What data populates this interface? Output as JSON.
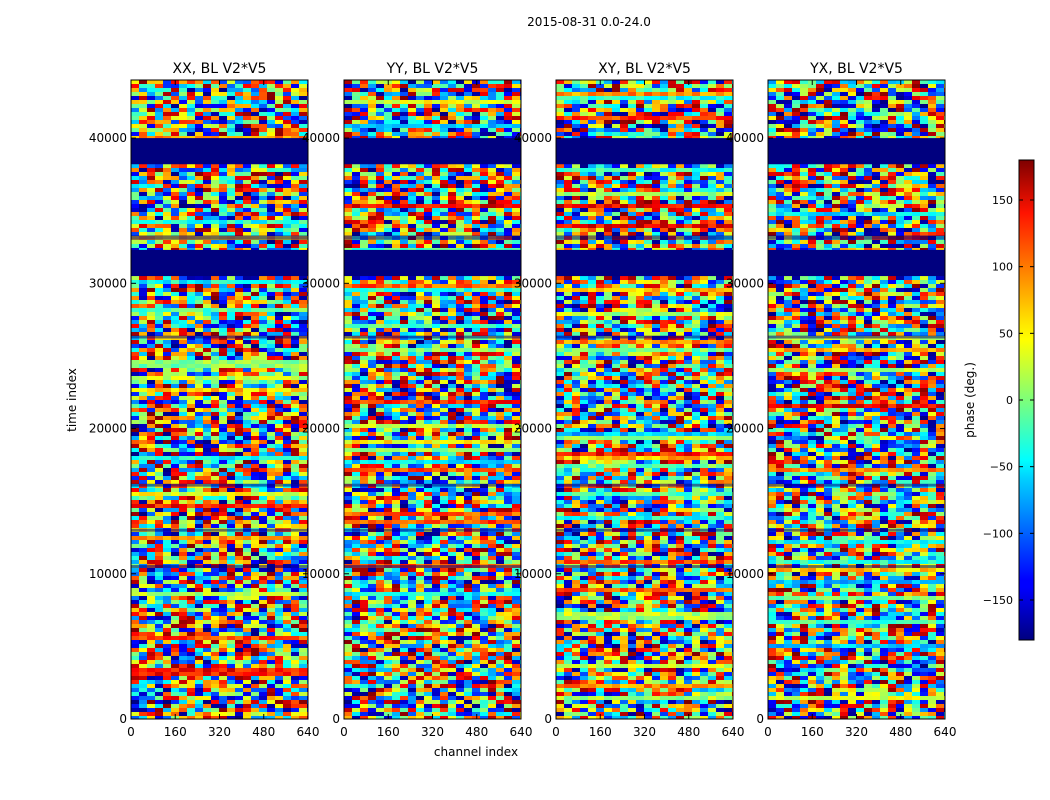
{
  "chart_data": {
    "type": "heatmap",
    "suptitle": "2015-08-31 0.0-24.0",
    "xlabel": "channel index",
    "ylabel": "time index",
    "xlim": [
      0,
      640
    ],
    "ylim": [
      0,
      44000
    ],
    "xticks": [
      0,
      160,
      320,
      480,
      640
    ],
    "yticks": [
      0,
      10000,
      20000,
      30000,
      40000
    ],
    "panels": [
      {
        "title": "XX, BL V2*V5",
        "pol": "XX"
      },
      {
        "title": "YY, BL V2*V5",
        "pol": "YY"
      },
      {
        "title": "XY, BL V2*V5",
        "pol": "XY"
      },
      {
        "title": "YX, BL V2*V5",
        "pol": "YX"
      }
    ],
    "colorbar": {
      "label": "phase (deg.)",
      "range": [
        -180,
        180
      ],
      "ticks": [
        -150,
        -100,
        -50,
        0,
        50,
        100,
        150
      ],
      "tick_labels": [
        "−150",
        "−100",
        "−50",
        "0",
        "50",
        "100",
        "150"
      ],
      "colormap": "jet"
    },
    "flagged_time_ranges": [
      [
        38200,
        40000
      ],
      [
        30500,
        32300
      ]
    ],
    "flag_color": "#00007f"
  }
}
